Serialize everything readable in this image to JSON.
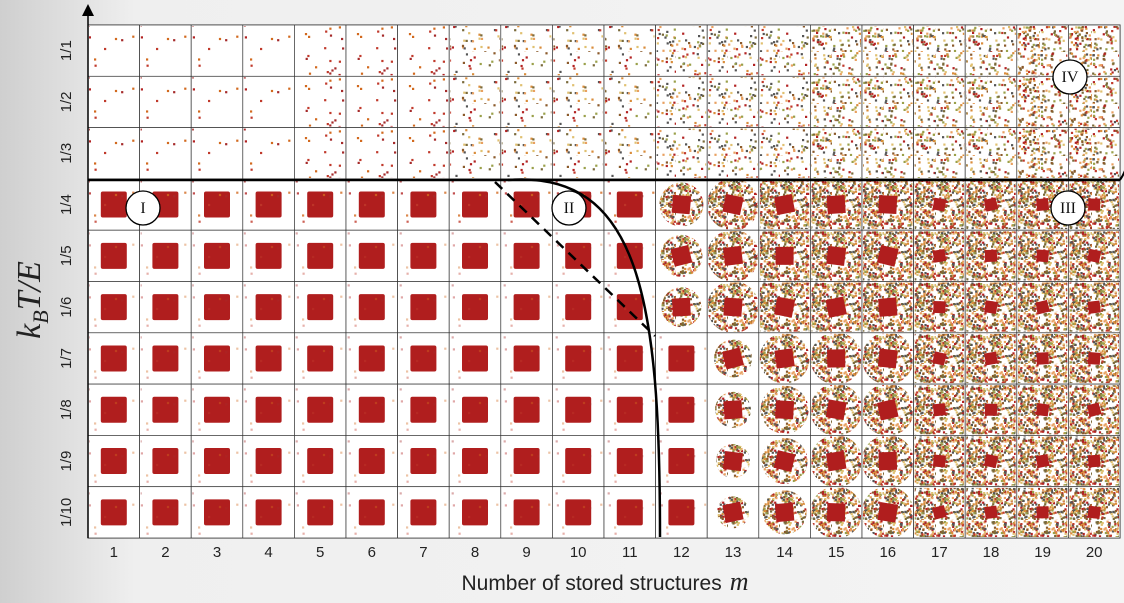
{
  "x_axis": {
    "label": "Number of stored structures",
    "symbol": "m",
    "ticks": [
      "1",
      "2",
      "3",
      "4",
      "5",
      "6",
      "7",
      "8",
      "9",
      "10",
      "11",
      "12",
      "13",
      "14",
      "15",
      "16",
      "17",
      "18",
      "19",
      "20"
    ]
  },
  "y_axis": {
    "label": {
      "k": "k",
      "sub": "B",
      "rest": "T/E"
    },
    "ticks": [
      "1/1",
      "1/2",
      "1/3",
      "1/4",
      "1/5",
      "1/6",
      "1/7",
      "1/8",
      "1/9",
      "1/10"
    ]
  },
  "regions": [
    "I",
    "II",
    "III",
    "IV"
  ]
}
